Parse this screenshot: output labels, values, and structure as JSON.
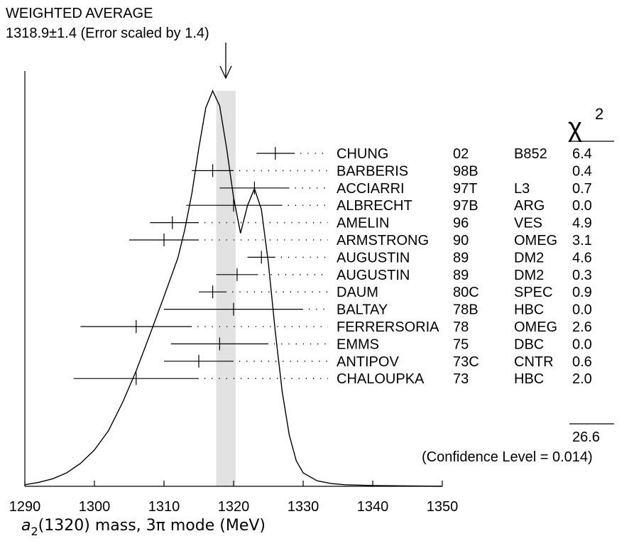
{
  "header": {
    "title": "WEIGHTED AVERAGE",
    "subtitle": "1318.9±1.4 (Error scaled by 1.4)"
  },
  "chi2_header": {
    "symbol": "χ",
    "superscript": "2"
  },
  "totals": {
    "chi2_total": "26.6",
    "confidence_level": "(Confidence Level = 0.014)"
  },
  "axis": {
    "x_title_symbol": "a",
    "x_title_subscript": "2",
    "x_title_rest": "(1320) mass, 3π mode (MeV)"
  },
  "chart_data": {
    "type": "scatter",
    "title": "WEIGHTED AVERAGE",
    "xlabel": "a2(1320) mass, 3π mode (MeV)",
    "xlim": [
      1290,
      1350
    ],
    "xticks": [
      "1290",
      "1300",
      "1310",
      "1320",
      "1330",
      "1340",
      "1350"
    ],
    "weighted_average": {
      "value": 1318.9,
      "error": 1.4,
      "scale_factor": 1.4
    },
    "band": [
      1317.5,
      1320.3
    ],
    "measurements": [
      {
        "author": "CHUNG",
        "year": "02",
        "tech": "B852",
        "chi2": "6.4",
        "value": 1326.0,
        "lo": 1323.3,
        "hi": 1328.8
      },
      {
        "author": "BARBERIS",
        "year": "98B",
        "tech": "",
        "chi2": "0.4",
        "value": 1317.0,
        "lo": 1314.0,
        "hi": 1320.0
      },
      {
        "author": "ACCIARRI",
        "year": "97T",
        "tech": "L3",
        "chi2": "0.7",
        "value": 1323.0,
        "lo": 1318.0,
        "hi": 1328.0
      },
      {
        "author": "ALBRECHT",
        "year": "97B",
        "tech": "ARG",
        "chi2": "0.0",
        "value": 1320.0,
        "lo": 1313.2,
        "hi": 1327.0
      },
      {
        "author": "AMELIN",
        "year": "96",
        "tech": "VES",
        "chi2": "4.9",
        "value": 1311.2,
        "lo": 1308.0,
        "hi": 1315.0
      },
      {
        "author": "ARMSTRONG",
        "year": "90",
        "tech": "OMEG",
        "chi2": "3.1",
        "value": 1310.0,
        "lo": 1305.0,
        "hi": 1315.0
      },
      {
        "author": "AUGUSTIN",
        "year": "89",
        "tech": "DM2",
        "chi2": "4.6",
        "value": 1324.0,
        "lo": 1322.0,
        "hi": 1326.0
      },
      {
        "author": "AUGUSTIN",
        "year": "89",
        "tech": "DM2",
        "chi2": "0.3",
        "value": 1320.5,
        "lo": 1317.5,
        "hi": 1323.5
      },
      {
        "author": "DAUM",
        "year": "80C",
        "tech": "SPEC",
        "chi2": "0.9",
        "value": 1317.0,
        "lo": 1315.0,
        "hi": 1319.0
      },
      {
        "author": "BALTAY",
        "year": "78B",
        "tech": "HBC",
        "chi2": "0.0",
        "value": 1320.0,
        "lo": 1310.0,
        "hi": 1330.0
      },
      {
        "author": "FERRERSORIA",
        "year": "78",
        "tech": "OMEG",
        "chi2": "2.6",
        "value": 1306.0,
        "lo": 1298.0,
        "hi": 1314.0
      },
      {
        "author": "EMMS",
        "year": "75",
        "tech": "DBC",
        "chi2": "0.0",
        "value": 1318.0,
        "lo": 1311.0,
        "hi": 1325.0
      },
      {
        "author": "ANTIPOV",
        "year": "73C",
        "tech": "CNTR",
        "chi2": "0.6",
        "value": 1315.0,
        "lo": 1310.0,
        "hi": 1320.0
      },
      {
        "author": "CHALOUPKA",
        "year": "73",
        "tech": "HBC",
        "chi2": "2.0",
        "value": 1306.0,
        "lo": 1297.0,
        "hi": 1315.0
      }
    ],
    "ideogram_curve": [
      [
        1290,
        0.004
      ],
      [
        1292,
        0.01
      ],
      [
        1294,
        0.019
      ],
      [
        1296,
        0.034
      ],
      [
        1298,
        0.058
      ],
      [
        1300,
        0.092
      ],
      [
        1302,
        0.14
      ],
      [
        1304,
        0.21
      ],
      [
        1306,
        0.292
      ],
      [
        1308,
        0.385
      ],
      [
        1310,
        0.48
      ],
      [
        1312,
        0.578
      ],
      [
        1313,
        0.65
      ],
      [
        1314,
        0.74
      ],
      [
        1315,
        0.855
      ],
      [
        1316,
        0.957
      ],
      [
        1317,
        1.0
      ],
      [
        1318,
        0.962
      ],
      [
        1319,
        0.855
      ],
      [
        1320,
        0.73
      ],
      [
        1321,
        0.64
      ],
      [
        1322,
        0.71
      ],
      [
        1323,
        0.753
      ],
      [
        1324,
        0.7
      ],
      [
        1325,
        0.565
      ],
      [
        1326,
        0.39
      ],
      [
        1327,
        0.238
      ],
      [
        1328,
        0.13
      ],
      [
        1329,
        0.065
      ],
      [
        1330,
        0.034
      ],
      [
        1332,
        0.014
      ],
      [
        1334,
        0.007
      ],
      [
        1336,
        0.004
      ],
      [
        1340,
        0.002
      ],
      [
        1345,
        0.001
      ],
      [
        1350,
        0.0
      ]
    ]
  }
}
